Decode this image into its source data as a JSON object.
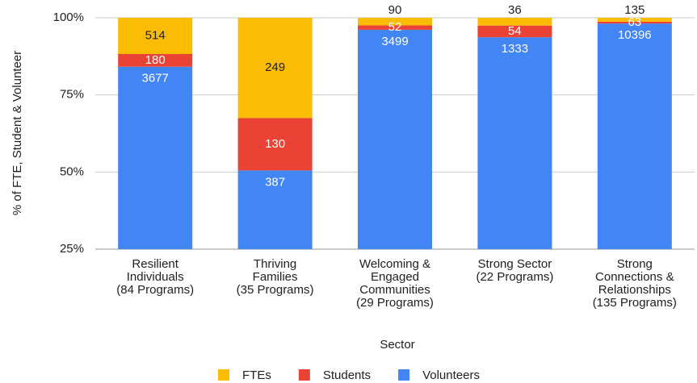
{
  "chart_data": {
    "type": "bar",
    "stack": "percent",
    "x_label": "Sector",
    "y_label": "% of FTE, Student & Volunteer",
    "categories": [
      [
        "Resilient",
        "Individuals",
        "(84 Programs)"
      ],
      [
        "Thriving",
        "Families",
        "(35 Programs)"
      ],
      [
        "Welcoming &",
        "Engaged",
        "Communities",
        "(29 Programs)"
      ],
      [
        "Strong Sector",
        "(22 Programs)"
      ],
      [
        "Strong",
        "Connections &",
        "Relationships",
        "(135 Programs)"
      ]
    ],
    "series": [
      {
        "name": "FTEs",
        "color": "#fbbc04",
        "label_color": "#202124",
        "values": [
          514,
          249,
          90,
          36,
          135
        ]
      },
      {
        "name": "Students",
        "color": "#ea4335",
        "label_color": "#ffffff",
        "values": [
          180,
          130,
          52,
          54,
          63
        ]
      },
      {
        "name": "Volunteers",
        "color": "#4285f4",
        "label_color": "#ffffff",
        "values": [
          3677,
          387,
          3499,
          1333,
          10396
        ]
      }
    ],
    "ylim": [
      25,
      100
    ],
    "yticks": [
      {
        "value": 25,
        "label": "25%"
      },
      {
        "value": 50,
        "label": "50%"
      },
      {
        "value": 75,
        "label": "75%"
      },
      {
        "value": 100,
        "label": "100%"
      }
    ],
    "grid": true,
    "legend": "bottom"
  }
}
